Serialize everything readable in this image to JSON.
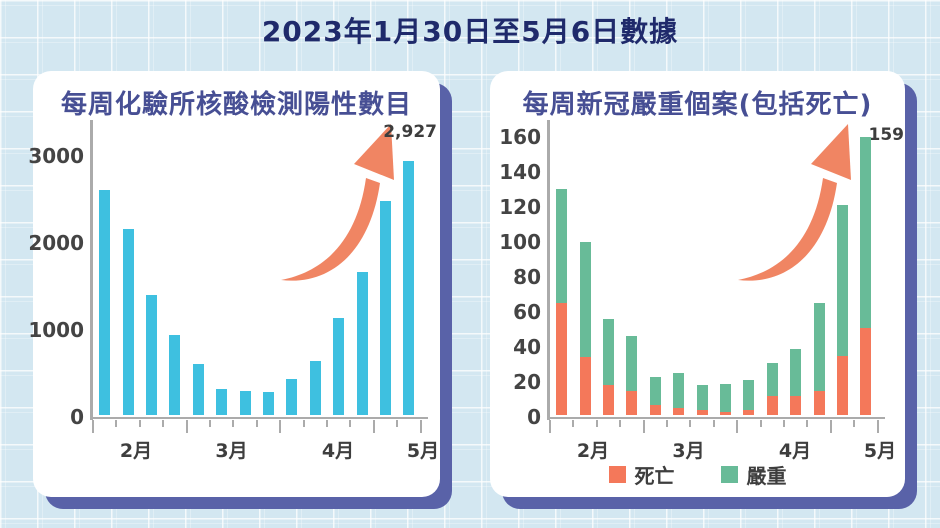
{
  "title": "2023年1月30日至5月6日數據",
  "palette": {
    "background": "#d3e7f1",
    "card": "#ffffff",
    "card_shadow": "#5962a8",
    "main_title": "#1f2a6b",
    "chart_title": "#474f94",
    "axis": "#ababab",
    "label_text": "#3e3e3e",
    "bar_cyan": "#3ec0e0",
    "deaths_orange": "#f4785a",
    "severe_green": "#68bb98",
    "arrow_orange": "#f08563"
  },
  "chart_data": [
    {
      "type": "bar",
      "title": "每周化驗所核酸檢測陽性數目",
      "x_unit": "week",
      "month_labels": [
        "2月",
        "3月",
        "4月",
        "5月"
      ],
      "values": [
        2590,
        2140,
        1380,
        920,
        590,
        300,
        280,
        270,
        410,
        620,
        1120,
        1650,
        2470,
        2927
      ],
      "yticks": [
        0,
        1000,
        2000,
        3000
      ],
      "ylim": [
        0,
        3400
      ],
      "bar_color": "#3ec0e0",
      "grid": false,
      "legend": null,
      "annotation": {
        "text": "2,927",
        "target": "last-bar"
      }
    },
    {
      "type": "stacked-bar",
      "title": "每周新冠嚴重個案(包括死亡)",
      "x_unit": "week",
      "month_labels": [
        "2月",
        "3月",
        "4月",
        "5月"
      ],
      "series": [
        {
          "name": "死亡",
          "color": "#f4785a",
          "values": [
            64,
            33,
            17,
            14,
            6,
            4,
            3,
            2,
            3,
            11,
            11,
            14,
            34,
            50
          ]
        },
        {
          "name": "嚴重",
          "color": "#68bb98",
          "values": [
            65,
            66,
            38,
            31,
            16,
            20,
            14,
            16,
            17,
            19,
            27,
            50,
            86,
            109
          ]
        }
      ],
      "totals": [
        129,
        99,
        55,
        45,
        22,
        24,
        17,
        18,
        20,
        30,
        38,
        64,
        120,
        159
      ],
      "yticks": [
        0,
        20,
        40,
        60,
        80,
        100,
        120,
        140,
        160
      ],
      "ylim": [
        0,
        169
      ],
      "grid": false,
      "legend_position": "bottom",
      "annotation": {
        "text": "159",
        "target": "last-bar"
      }
    }
  ]
}
